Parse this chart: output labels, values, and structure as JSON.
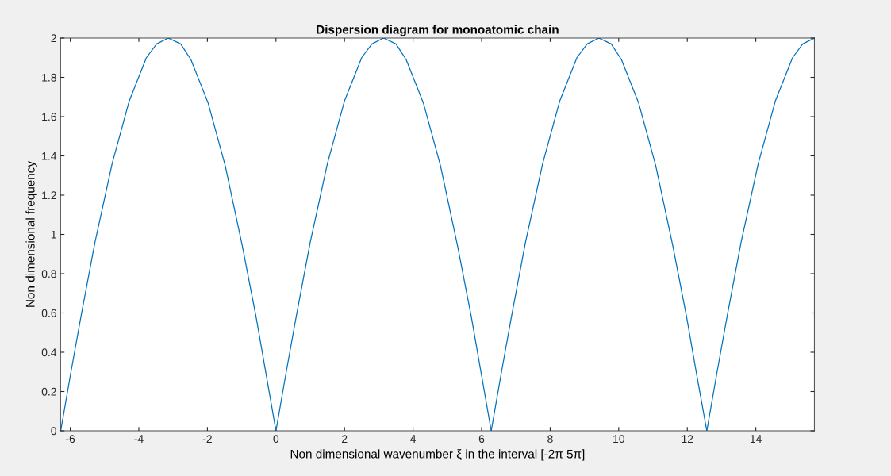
{
  "chart_data": {
    "type": "line",
    "title": "Dispersion diagram for monoatomic chain",
    "xlabel": "Non dimensional wavenumber ξ in the interval [-2π 5π]",
    "ylabel": "Non dimensional frequency",
    "x": [
      -6.28,
      -5.98,
      -5.68,
      -5.28,
      -4.78,
      -4.28,
      -3.78,
      -3.48,
      -3.14,
      -2.78,
      -2.48,
      -1.98,
      -1.48,
      -0.98,
      -0.58,
      -0.28,
      0,
      0.3,
      0.6,
      1.0,
      1.5,
      2.0,
      2.5,
      2.8,
      3.14,
      3.5,
      3.8,
      4.3,
      4.8,
      5.3,
      5.7,
      6.0,
      6.28,
      6.58,
      6.88,
      7.28,
      7.78,
      8.28,
      8.78,
      9.08,
      9.42,
      9.78,
      10.08,
      10.58,
      11.08,
      11.58,
      11.98,
      12.28,
      12.57,
      12.87,
      13.17,
      13.57,
      14.07,
      14.57,
      15.07,
      15.37,
      15.708
    ],
    "series": [
      {
        "color": "#0072bd",
        "values": [
          0,
          0.3,
          0.59,
          0.96,
          1.36,
          1.68,
          1.9,
          1.97,
          2.0,
          1.97,
          1.89,
          1.67,
          1.35,
          0.94,
          0.58,
          0.28,
          0,
          0.3,
          0.59,
          0.96,
          1.36,
          1.68,
          1.9,
          1.97,
          2.0,
          1.97,
          1.89,
          1.67,
          1.35,
          0.94,
          0.58,
          0.28,
          0,
          0.3,
          0.59,
          0.96,
          1.36,
          1.68,
          1.9,
          1.97,
          2.0,
          1.97,
          1.89,
          1.67,
          1.35,
          0.94,
          0.58,
          0.28,
          0,
          0.3,
          0.59,
          0.96,
          1.36,
          1.68,
          1.9,
          1.97,
          2.0
        ]
      }
    ],
    "xlim": [
      -6.2832,
      15.708
    ],
    "xticks": [
      -6,
      -4,
      -2,
      0,
      2,
      4,
      6,
      8,
      10,
      12,
      14
    ],
    "ylim": [
      0,
      2
    ],
    "yticks": [
      0,
      {
        "value": 0.2,
        "label": "0.2"
      },
      {
        "value": 0.4,
        "label": "0.4"
      },
      {
        "value": 0.6,
        "label": "0.6"
      },
      {
        "value": 0.8,
        "label": "0.8"
      },
      1,
      {
        "value": 1.2,
        "label": "1.2"
      },
      {
        "value": 1.4,
        "label": "1.4"
      },
      {
        "value": 1.6,
        "label": "1.6"
      },
      {
        "value": 1.8,
        "label": "1.8"
      },
      2
    ],
    "grid": false,
    "marker": "none",
    "line_style": "solid"
  }
}
